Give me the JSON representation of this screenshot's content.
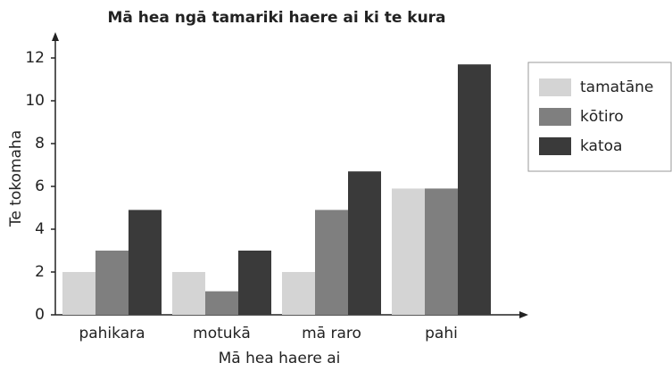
{
  "chart_data": {
    "type": "bar",
    "title": "Mā hea ngā tamariki haere ai ki te kura",
    "x_label": "Mā hea haere ai",
    "y_label": "Te tokomaha",
    "categories": [
      "pahikara",
      "motukā",
      "mā raro",
      "pahi"
    ],
    "series": [
      {
        "name": "tamatāne",
        "color": "#d4d4d4",
        "values": [
          2,
          2,
          2,
          5.9
        ]
      },
      {
        "name": "kōtiro",
        "color": "#7f7f7f",
        "values": [
          3,
          1.1,
          4.9,
          5.9
        ]
      },
      {
        "name": "katoa",
        "color": "#3a3a3a",
        "values": [
          4.9,
          3,
          6.7,
          11.7
        ]
      }
    ],
    "ylim": [
      0,
      12
    ],
    "yticks": [
      0,
      2,
      4,
      6,
      8,
      10,
      12
    ],
    "grid": false,
    "legend": "right"
  }
}
